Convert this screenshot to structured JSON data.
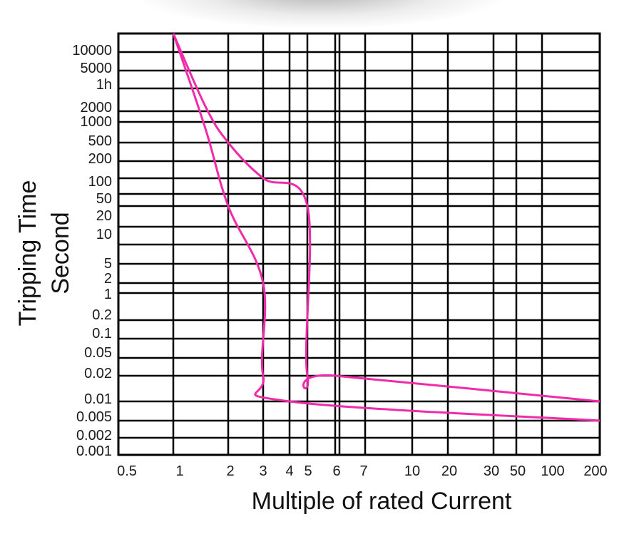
{
  "chart_data": {
    "type": "line",
    "xlabel": "Multiple of rated Current",
    "ylabel_line1": "Tripping Time",
    "ylabel_line2": "Second",
    "x_ticks": [
      "0.5",
      "1",
      "2",
      "3",
      "4",
      "5",
      "6",
      "7",
      "10",
      "20",
      "30",
      "50",
      "100",
      "200"
    ],
    "y_ticks": [
      "10000",
      "5000",
      "1h",
      "2000",
      "1000",
      "500",
      "200",
      "100",
      "50",
      "20",
      "10",
      "5",
      "2",
      "1",
      "0.2",
      "0.1",
      "0.05",
      "0.02",
      "0.01",
      "0.005",
      "0.002",
      "0.001"
    ],
    "grid": true,
    "curve_color": "#f02aa8",
    "series": [
      {
        "values": [
          [
            1,
            10000
          ],
          [
            1.5,
            800
          ],
          [
            2,
            20
          ],
          [
            3,
            2
          ],
          [
            3,
            0.02
          ],
          [
            4,
            0.01
          ],
          [
            200,
            0.005
          ]
        ]
      },
      {
        "values": [
          [
            1,
            10000
          ],
          [
            1.5,
            1500
          ],
          [
            2,
            500
          ],
          [
            3,
            100
          ],
          [
            5,
            20
          ],
          [
            5,
            0.02
          ],
          [
            6,
            0.02
          ],
          [
            200,
            0.01
          ]
        ]
      }
    ]
  }
}
